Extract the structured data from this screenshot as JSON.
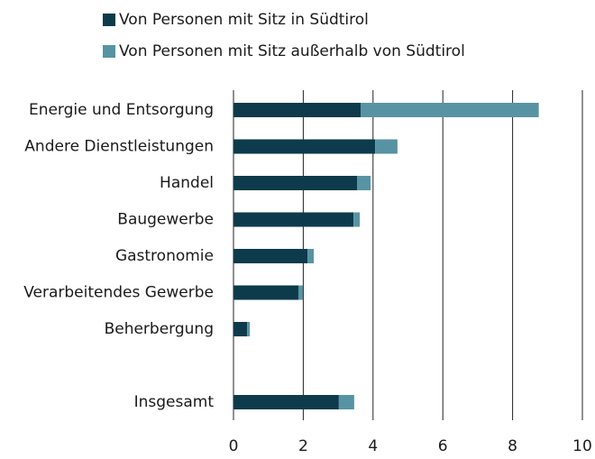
{
  "chart_data": {
    "type": "stacked-barh",
    "categories": [
      "Energie und Entsorgung",
      "Andere Dienstleistungen",
      "Handel",
      "Baugewerbe",
      "Gastronomie",
      "Verarbeitendes Gewerbe",
      "Beherbergung",
      null,
      "Insgesamt"
    ],
    "series": [
      {
        "name": "Von Personen mit Sitz in Südtirol",
        "color": "#0d3b4c",
        "values": [
          3.65,
          4.06,
          3.54,
          3.44,
          2.12,
          1.86,
          0.39,
          null,
          3.02
        ]
      },
      {
        "name": "Von Personen mit Sitz außerhalb von Südtirol",
        "color": "#5893a4",
        "values": [
          5.1,
          0.64,
          0.39,
          0.18,
          0.18,
          0.13,
          0.08,
          null,
          0.44
        ]
      }
    ],
    "xlim": [
      0,
      10
    ],
    "xticks": [
      0,
      2,
      4,
      6,
      8,
      10
    ],
    "grid": true,
    "legend": "top"
  }
}
